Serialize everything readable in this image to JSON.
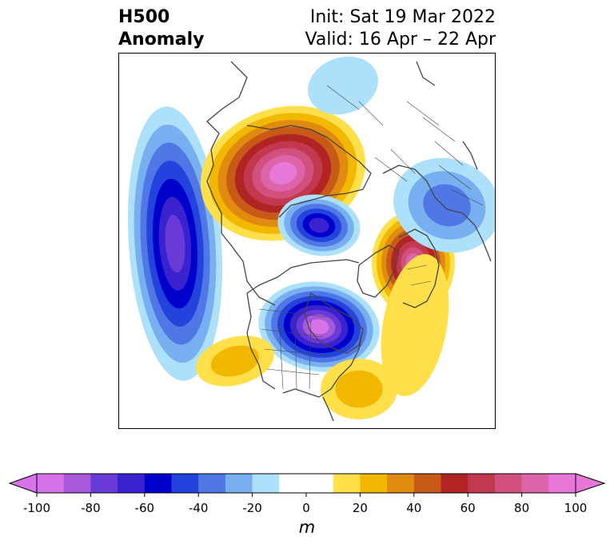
{
  "title": {
    "left_line1": "H500",
    "left_line2": "Anomaly",
    "right_line1": "Init: Sat 19 Mar 2022",
    "right_line2": "Valid: 16 Apr – 22 Apr"
  },
  "colorbar": {
    "unit": "m",
    "min": -100,
    "max": 100,
    "tick_labels": [
      "-100",
      "-80",
      "-60",
      "-40",
      "-20",
      "0",
      "20",
      "40",
      "60",
      "80",
      "100"
    ],
    "colors": [
      "#d673e8",
      "#a65ad9",
      "#6a3ad9",
      "#3a22cf",
      "#0000cc",
      "#2244dd",
      "#5077e6",
      "#77aff0",
      "#ade0fa",
      "#ffffff",
      "#ffffff",
      "#ffe04a",
      "#f2b800",
      "#e08a10",
      "#c85a18",
      "#b02424",
      "#c2384e",
      "#d1507e",
      "#dc64a8",
      "#e878d8"
    ]
  },
  "palette": {
    "neg": [
      "#ade0fa",
      "#77aff0",
      "#5077e6",
      "#2244dd",
      "#0000cc",
      "#3a22cf",
      "#6a3ad9",
      "#a65ad9",
      "#d673e8"
    ],
    "pos": [
      "#ffe04a",
      "#f2b800",
      "#e08a10",
      "#c85a18",
      "#b02424",
      "#c2384e",
      "#d1507e",
      "#dc64a8",
      "#e878d8"
    ]
  },
  "map": {
    "projection": "north-polar-stereographic",
    "field": "500 hPa geopotential height anomaly",
    "features": [
      {
        "sign": "neg",
        "peak": -90,
        "region": "Gulf of Alaska / NE Pacific"
      },
      {
        "sign": "pos",
        "peak": 90,
        "region": "Siberia / Kamchatka"
      },
      {
        "sign": "neg",
        "peak": -60,
        "region": "Arctic Ocean"
      },
      {
        "sign": "pos",
        "peak": 85,
        "region": "Scandinavia"
      },
      {
        "sign": "neg",
        "peak": -100,
        "region": "Labrador / Baffin"
      },
      {
        "sign": "neg",
        "peak": -30,
        "region": "Central Asia"
      },
      {
        "sign": "pos",
        "peak": 25,
        "region": "SW United States"
      },
      {
        "sign": "pos",
        "peak": 25,
        "region": "SE United States"
      },
      {
        "sign": "pos",
        "peak": 25,
        "region": "Central Atlantic"
      }
    ]
  }
}
